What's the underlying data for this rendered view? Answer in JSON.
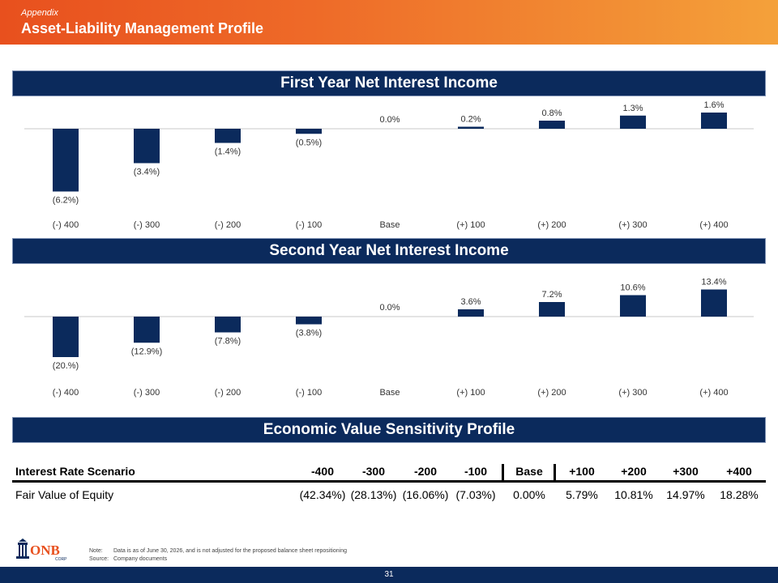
{
  "header": {
    "subtitle": "Appendix",
    "title": "Asset-Liability Management Profile"
  },
  "chart1": {
    "title": "First Year Net Interest Income"
  },
  "chart2": {
    "title": "Second Year Net Interest Income"
  },
  "table_section": {
    "title": "Economic Value Sensitivity Profile"
  },
  "chart_data": [
    {
      "type": "bar",
      "title": "First Year Net Interest Income",
      "categories": [
        "(-) 400",
        "(-) 300",
        "(-) 200",
        "(-) 100",
        "Base",
        "(+) 100",
        "(+) 200",
        "(+) 300",
        "(+) 400"
      ],
      "values": [
        -6.2,
        -3.4,
        -1.4,
        -0.5,
        0.0,
        0.2,
        0.8,
        1.3,
        1.6
      ],
      "labels": [
        "(6.2%)",
        "(3.4%)",
        "(1.4%)",
        "(0.5%)",
        "0.0%",
        "0.2%",
        "0.8%",
        "1.3%",
        "1.6%"
      ],
      "bar_color": "#0b2a5c"
    },
    {
      "type": "bar",
      "title": "Second Year Net Interest Income",
      "categories": [
        "(-) 400",
        "(-) 300",
        "(-) 200",
        "(-) 100",
        "Base",
        "(+) 100",
        "(+) 200",
        "(+) 300",
        "(+) 400"
      ],
      "values": [
        -20.0,
        -12.9,
        -7.8,
        -3.8,
        0.0,
        3.6,
        7.2,
        10.6,
        13.4
      ],
      "labels": [
        "(20.%)",
        "(12.9%)",
        "(7.8%)",
        "(3.8%)",
        "0.0%",
        "3.6%",
        "7.2%",
        "10.6%",
        "13.4%"
      ],
      "bar_color": "#0b2a5c"
    }
  ],
  "table": {
    "header_label": "Interest Rate Scenario",
    "columns": [
      "-400",
      "-300",
      "-200",
      "-100",
      "Base",
      "+100",
      "+200",
      "+300",
      "+400"
    ],
    "row_label": "Fair Value of Equity",
    "values": [
      "(42.34%)",
      "(28.13%)",
      "(16.06%)",
      "(7.03%)",
      "0.00%",
      "5.79%",
      "10.81%",
      "14.97%",
      "18.28%"
    ]
  },
  "footer": {
    "logo_text": "ONB",
    "logo_subtext": "CORP",
    "note_label": "Note:",
    "note_text": "Data is as of June 30, 2026, and is not adjusted for the proposed balance sheet repositioning",
    "source_label": "Source:",
    "source_text": "Company documents",
    "page_number": "31"
  }
}
